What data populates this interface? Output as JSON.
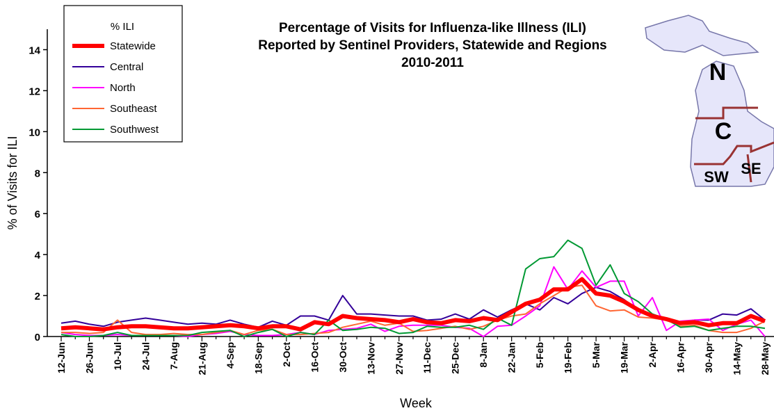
{
  "chart_data": {
    "type": "line",
    "title": [
      "Percentage of Visits for Influenza-like Illness (ILI)",
      "Reported by Sentinel Providers, Statewide and Regions",
      "2010-2011"
    ],
    "x_label": "Week",
    "y_label": "% of Visits for ILI",
    "legend_title": "% ILI",
    "categories": [
      "12-Jun",
      null,
      "26-Jun",
      null,
      "10-Jul",
      null,
      "24-Jul",
      null,
      "7-Aug",
      null,
      "21-Aug",
      null,
      "4-Sep",
      null,
      "18-Sep",
      null,
      "2-Oct",
      null,
      "16-Oct",
      null,
      "30-Oct",
      null,
      "13-Nov",
      null,
      "27-Nov",
      null,
      "11-Dec",
      null,
      "25-Dec",
      null,
      "8-Jan",
      null,
      "22-Jan",
      null,
      "5-Feb",
      null,
      "19-Feb",
      null,
      "5-Mar",
      null,
      "19-Mar",
      null,
      "2-Apr",
      null,
      "16-Apr",
      null,
      "30-Apr",
      null,
      "14-May",
      null,
      "28-May"
    ],
    "ylim": [
      0,
      15
    ],
    "yticks": [
      0,
      2,
      4,
      6,
      8,
      10,
      12,
      14
    ],
    "series": [
      {
        "name": "Statewide",
        "color": "#ff0000",
        "values": [
          0.4,
          0.45,
          0.4,
          0.35,
          0.45,
          0.5,
          0.5,
          0.45,
          0.4,
          0.4,
          0.45,
          0.5,
          0.55,
          0.5,
          0.4,
          0.5,
          0.5,
          0.35,
          0.7,
          0.6,
          1.0,
          0.9,
          0.85,
          0.8,
          0.7,
          0.85,
          0.7,
          0.65,
          0.8,
          0.75,
          0.9,
          0.8,
          1.2,
          1.6,
          1.8,
          2.3,
          2.3,
          2.8,
          2.1,
          2.0,
          1.7,
          1.3,
          1.0,
          0.85,
          0.65,
          0.7,
          0.55,
          0.65,
          0.65,
          1.0,
          0.75
        ]
      },
      {
        "name": "Central",
        "color": "#330099",
        "values": [
          0.65,
          0.75,
          0.6,
          0.5,
          0.7,
          0.8,
          0.9,
          0.8,
          0.7,
          0.6,
          0.65,
          0.6,
          0.8,
          0.6,
          0.45,
          0.75,
          0.55,
          1.0,
          1.0,
          0.8,
          2.0,
          1.1,
          1.1,
          1.05,
          1.0,
          1.0,
          0.8,
          0.85,
          1.1,
          0.85,
          1.3,
          0.95,
          1.3,
          1.6,
          1.3,
          1.9,
          1.6,
          2.1,
          2.4,
          2.2,
          1.8,
          1.3,
          1.0,
          0.9,
          0.7,
          0.8,
          0.8,
          1.1,
          1.05,
          1.35,
          0.8
        ]
      },
      {
        "name": "North",
        "color": "#ff00ff",
        "values": [
          0.2,
          0.1,
          0.05,
          0.05,
          0.1,
          0.05,
          0.05,
          0.05,
          0.05,
          0.0,
          0.1,
          0.15,
          0.25,
          0.1,
          0.05,
          0.05,
          0.1,
          0.2,
          0.1,
          0.3,
          0.35,
          0.4,
          0.6,
          0.25,
          0.5,
          0.55,
          0.55,
          0.55,
          0.45,
          0.4,
          0.0,
          0.5,
          0.55,
          1.0,
          1.5,
          3.4,
          2.3,
          3.2,
          2.4,
          2.7,
          2.7,
          1.0,
          1.9,
          0.3,
          0.75,
          0.8,
          0.85,
          0.3,
          0.6,
          0.8,
          0.0
        ]
      },
      {
        "name": "Southeast",
        "color": "#ff6633",
        "values": [
          0.2,
          0.2,
          0.15,
          0.2,
          0.8,
          0.2,
          0.1,
          0.1,
          0.15,
          0.1,
          0.1,
          0.2,
          0.3,
          0.1,
          0.3,
          0.35,
          0.1,
          0.1,
          0.15,
          0.2,
          0.45,
          0.6,
          0.75,
          0.55,
          0.65,
          0.25,
          0.3,
          0.4,
          0.5,
          0.35,
          0.5,
          0.8,
          1.0,
          1.1,
          1.6,
          2.0,
          2.4,
          2.5,
          1.5,
          1.25,
          1.3,
          0.95,
          0.9,
          0.8,
          0.5,
          0.55,
          0.3,
          0.2,
          0.2,
          0.4,
          0.75
        ]
      },
      {
        "name": "Southwest",
        "color": "#009933",
        "values": [
          0.1,
          0.0,
          0.0,
          0.05,
          0.2,
          0.05,
          0.05,
          0.05,
          0.05,
          0.05,
          0.2,
          0.25,
          0.3,
          0.0,
          0.2,
          0.35,
          0.0,
          0.2,
          0.1,
          0.8,
          0.3,
          0.35,
          0.45,
          0.4,
          0.15,
          0.2,
          0.5,
          0.45,
          0.45,
          0.55,
          0.35,
          0.9,
          0.55,
          3.3,
          3.8,
          3.9,
          4.7,
          4.3,
          2.5,
          3.5,
          2.1,
          1.7,
          1.1,
          0.85,
          0.45,
          0.5,
          0.3,
          0.4,
          0.5,
          0.5,
          0.4
        ]
      }
    ]
  },
  "map": {
    "labels": [
      "N",
      "C",
      "SW",
      "SE"
    ]
  }
}
